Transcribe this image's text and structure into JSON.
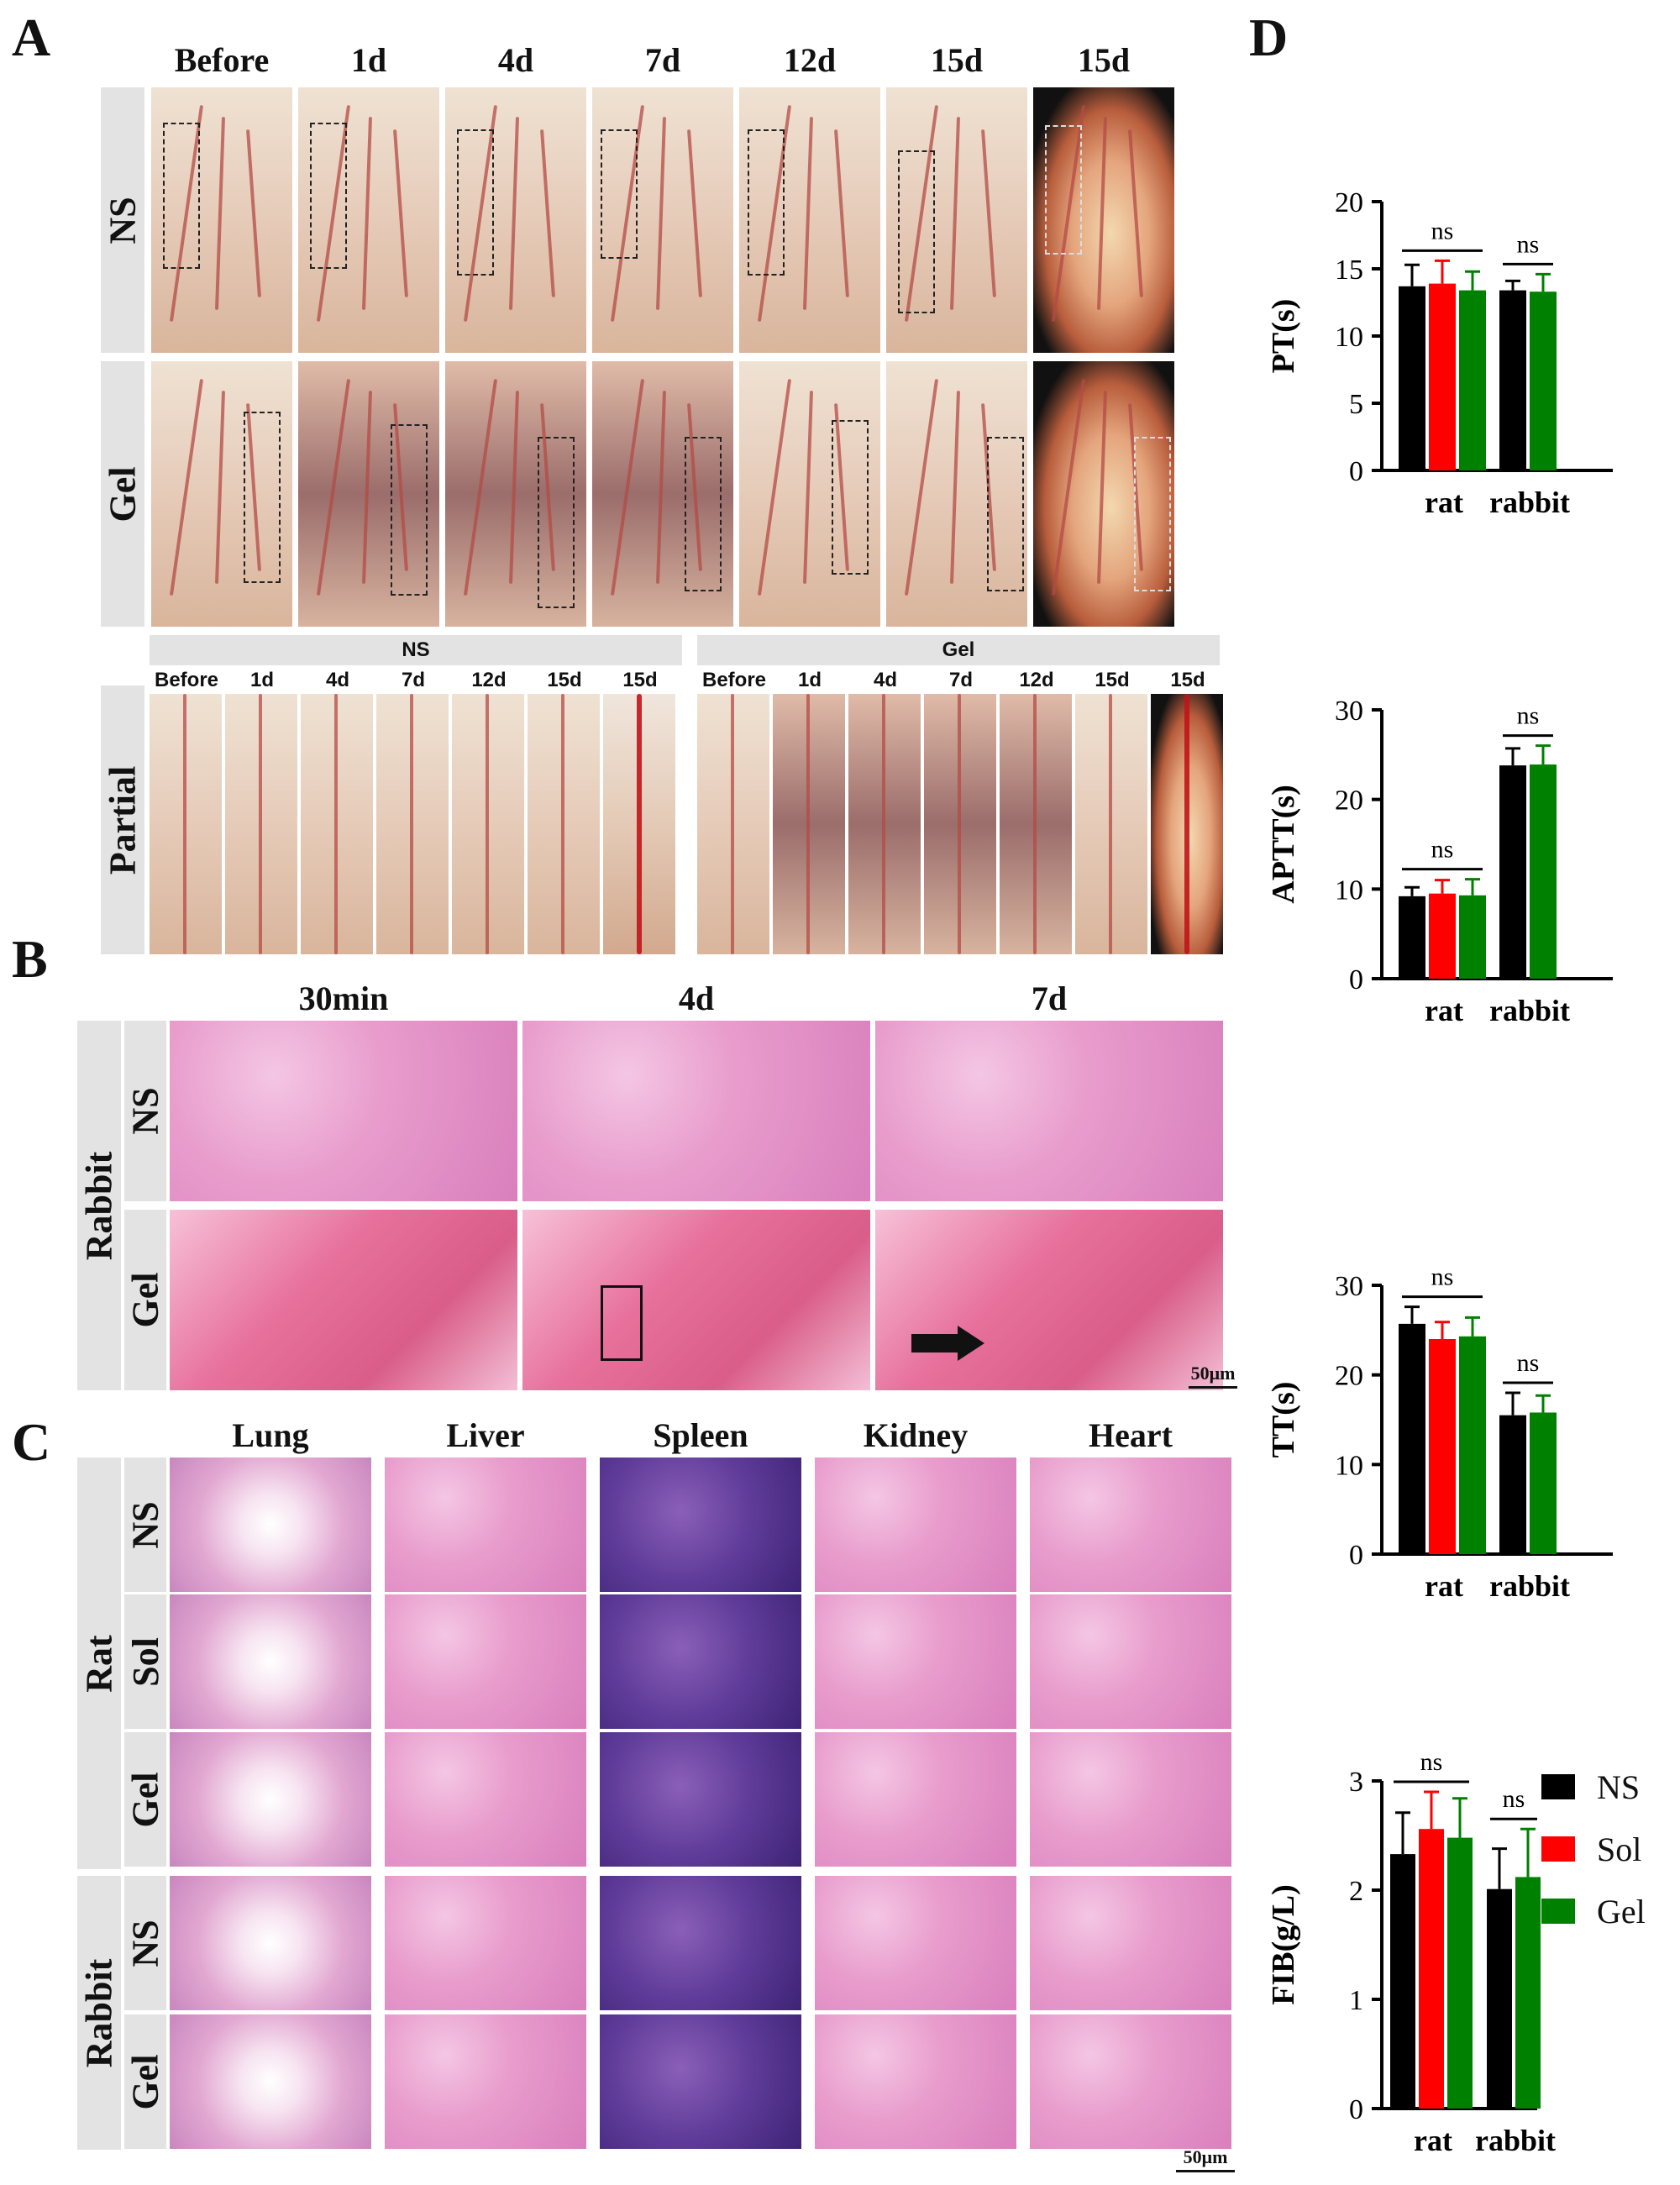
{
  "panels": {
    "A": "A",
    "B": "B",
    "C": "C",
    "D": "D"
  },
  "panelA": {
    "columns": [
      "Before",
      "1d",
      "4d",
      "7d",
      "12d",
      "15d",
      "15d"
    ],
    "rows": [
      "NS",
      "Gel",
      "Partial"
    ],
    "partial": {
      "groups": [
        "NS",
        "Gel"
      ],
      "columns": [
        "Before",
        "1d",
        "4d",
        "7d",
        "12d",
        "15d",
        "15d"
      ]
    }
  },
  "panelB": {
    "columns": [
      "30min",
      "4d",
      "7d"
    ],
    "species": "Rabbit",
    "rows": [
      "NS",
      "Gel"
    ],
    "scalebar": "50μm"
  },
  "panelC": {
    "columns": [
      "Lung",
      "Liver",
      "Spleen",
      "Kidney",
      "Heart"
    ],
    "groups": [
      {
        "species": "Rat",
        "rows": [
          "NS",
          "Sol",
          "Gel"
        ]
      },
      {
        "species": "Rabbit",
        "rows": [
          "NS",
          "Gel"
        ]
      }
    ],
    "scalebar": "50μm"
  },
  "chart_data": [
    {
      "type": "bar",
      "ylabel": "PT(s)",
      "categories": [
        "rat",
        "rabbit"
      ],
      "ylim": [
        0,
        20
      ],
      "yticks": [
        0,
        5,
        10,
        15,
        20
      ],
      "series": [
        {
          "name": "NS",
          "values": [
            13.7,
            13.4
          ],
          "errors": [
            1.6,
            0.7
          ]
        },
        {
          "name": "Sol",
          "values": [
            13.9,
            null
          ],
          "errors": [
            1.7,
            null
          ]
        },
        {
          "name": "Gel",
          "values": [
            13.4,
            13.3
          ],
          "errors": [
            1.4,
            1.3
          ]
        }
      ],
      "annotations": [
        "ns",
        "ns"
      ]
    },
    {
      "type": "bar",
      "ylabel": "APTT(s)",
      "categories": [
        "rat",
        "rabbit"
      ],
      "ylim": [
        0,
        30
      ],
      "yticks": [
        0,
        10,
        20,
        30
      ],
      "series": [
        {
          "name": "NS",
          "values": [
            9.2,
            23.8
          ],
          "errors": [
            1.0,
            1.9
          ]
        },
        {
          "name": "Sol",
          "values": [
            9.5,
            null
          ],
          "errors": [
            1.5,
            null
          ]
        },
        {
          "name": "Gel",
          "values": [
            9.3,
            23.9
          ],
          "errors": [
            1.8,
            2.1
          ]
        }
      ],
      "annotations": [
        "ns",
        "ns"
      ]
    },
    {
      "type": "bar",
      "ylabel": "TT(s)",
      "categories": [
        "rat",
        "rabbit"
      ],
      "ylim": [
        0,
        30
      ],
      "yticks": [
        0,
        10,
        20,
        30
      ],
      "series": [
        {
          "name": "NS",
          "values": [
            25.7,
            15.5
          ],
          "errors": [
            1.9,
            2.5
          ]
        },
        {
          "name": "Sol",
          "values": [
            24.0,
            null
          ],
          "errors": [
            1.9,
            null
          ]
        },
        {
          "name": "Gel",
          "values": [
            24.3,
            15.8
          ],
          "errors": [
            2.1,
            1.9
          ]
        }
      ],
      "annotations": [
        "ns",
        "ns"
      ]
    },
    {
      "type": "bar",
      "ylabel": "FIB(g/L)",
      "categories": [
        "rat",
        "rabbit"
      ],
      "ylim": [
        0,
        3
      ],
      "yticks": [
        0,
        1,
        2,
        3
      ],
      "series": [
        {
          "name": "NS",
          "values": [
            2.33,
            2.01
          ],
          "errors": [
            0.38,
            0.37
          ]
        },
        {
          "name": "Sol",
          "values": [
            2.56,
            null
          ],
          "errors": [
            0.34,
            null
          ]
        },
        {
          "name": "Gel",
          "values": [
            2.48,
            2.12
          ],
          "errors": [
            0.36,
            0.44
          ]
        }
      ],
      "annotations": [
        "ns",
        "ns"
      ]
    }
  ],
  "legend": [
    {
      "label": "NS",
      "color": "#000000"
    },
    {
      "label": "Sol",
      "color": "#ff0000"
    },
    {
      "label": "Gel",
      "color": "#008000"
    }
  ]
}
